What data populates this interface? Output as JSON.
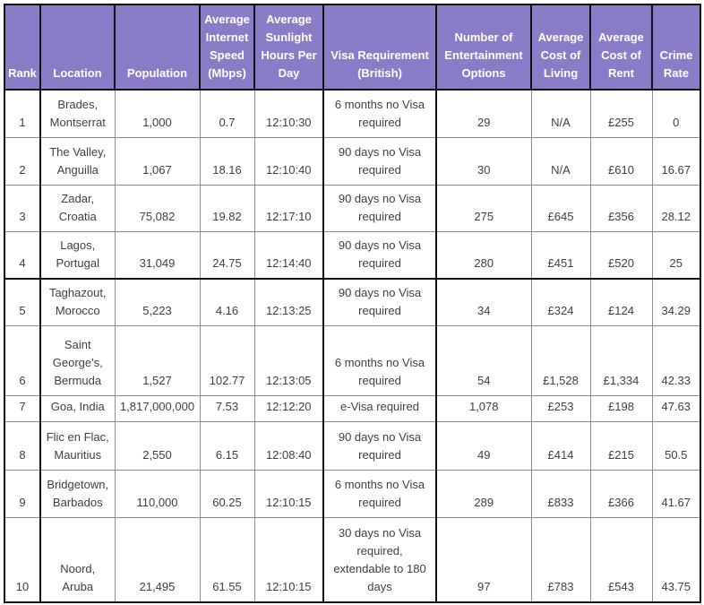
{
  "table": {
    "headers": [
      "Rank",
      "Location",
      "Population",
      "Average Internet Speed (Mbps)",
      "Average Sunlight Hours Per Day",
      "Visa Requirement (British)",
      "Number of Entertainment Options",
      "Average Cost of Living",
      "Average Cost of Rent",
      "Crime Rate"
    ],
    "rows": [
      [
        "1",
        "Brades, Montserrat",
        "1,000",
        "0.7",
        "12:10:30",
        "6 months no Visa required",
        "29",
        "N/A",
        "£255",
        "0"
      ],
      [
        "2",
        "The Valley, Anguilla",
        "1,067",
        "18.16",
        "12:10:40",
        "90 days no Visa required",
        "30",
        "N/A",
        "£610",
        "16.67"
      ],
      [
        "3",
        "Zadar, Croatia",
        "75,082",
        "19.82",
        "12:17:10",
        "90 days no Visa required",
        "275",
        "£645",
        "£356",
        "28.12"
      ],
      [
        "4",
        "Lagos, Portugal",
        "31,049",
        "24.75",
        "12:14:40",
        "90 days no Visa required",
        "280",
        "£451",
        "£520",
        "25"
      ],
      [
        "5",
        "Taghazout, Morocco",
        "5,223",
        "4.16",
        "12:13:25",
        "90 days no Visa required",
        "34",
        "£324",
        "£124",
        "34.29"
      ],
      [
        "6",
        "Saint George's, Bermuda",
        "1,527",
        "102.77",
        "12:13:05",
        "6 months no Visa required",
        "54",
        "£1,528",
        "£1,334",
        "42.33"
      ],
      [
        "7",
        "Goa, India",
        "1,817,000,000",
        "7.53",
        "12:12:20",
        "e-Visa required",
        "1,078",
        "£253",
        "£198",
        "47.63"
      ],
      [
        "8",
        "Flic en Flac, Mauritius",
        "2,550",
        "6.15",
        "12:08:40",
        "90 days no Visa required",
        "49",
        "£414",
        "£215",
        "50.5"
      ],
      [
        "9",
        "Bridgetown, Barbados",
        "110,000",
        "60.25",
        "12:10:15",
        "6 months no Visa required",
        "289",
        "£833",
        "£366",
        "41.67"
      ],
      [
        "10",
        "Noord, Aruba",
        "21,495",
        "61.55",
        "12:10:15",
        "30 days no Visa required, extendable to 180 days",
        "97",
        "£783",
        "£543",
        "43.75"
      ]
    ],
    "colors": {
      "header_bg": "#8b7cc7",
      "header_text": "#ffffff",
      "body_text": "#404040",
      "grid_line": "#8c8c8c",
      "frame_line": "#111111"
    }
  }
}
